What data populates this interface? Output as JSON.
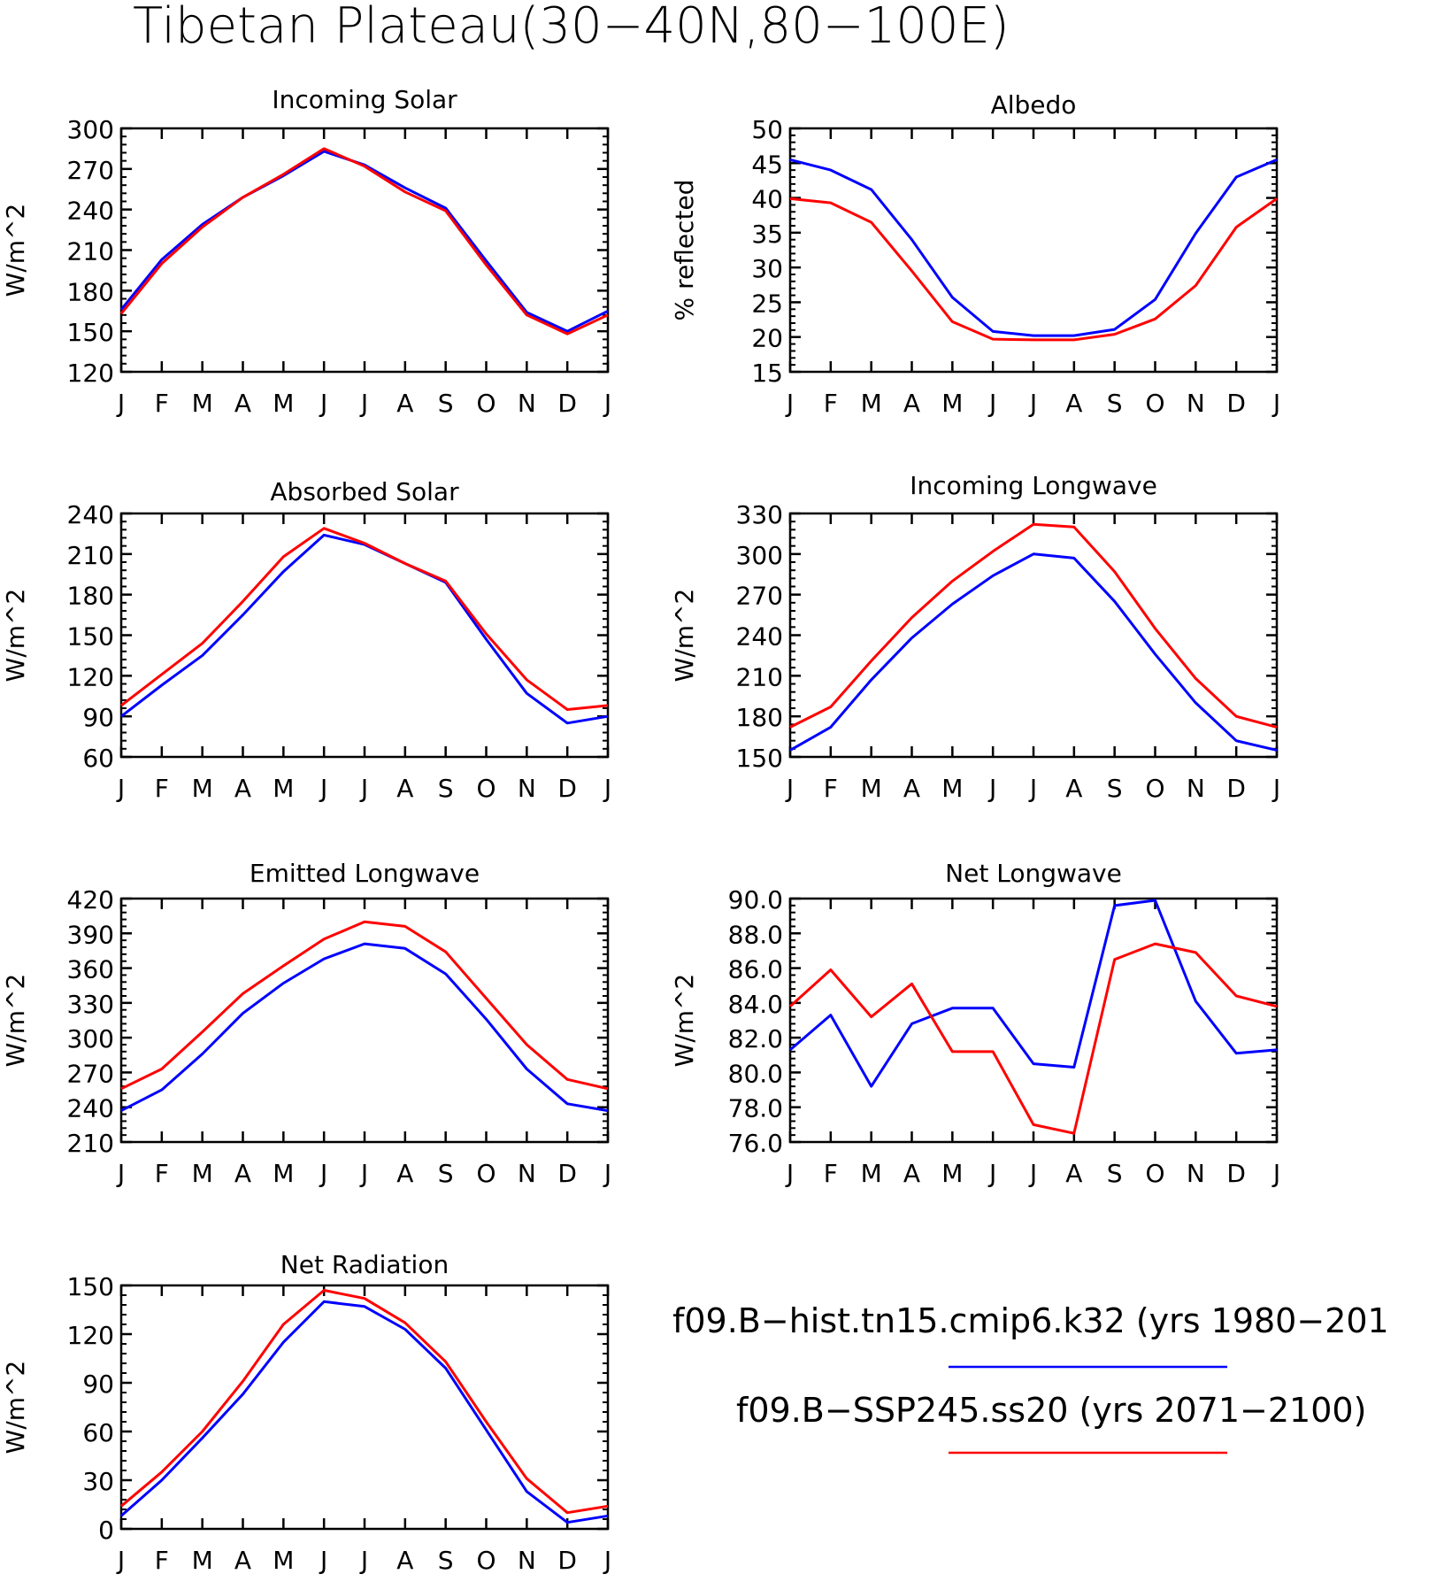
{
  "page": {
    "title": "Tibetan Plateau(30−40N,80−100E)"
  },
  "legend": {
    "entries": [
      {
        "label": "f09.B−hist.tn15.cmip6.k32 (yrs 1980−201",
        "color": "#0000ff"
      },
      {
        "label": "f09.B−SSP245.ss20 (yrs 2071−2100)",
        "color": "#ff0000"
      }
    ]
  },
  "colors": {
    "hist": "#0000ff",
    "ssp": "#ff0000",
    "axis": "#000000"
  },
  "chart_data": [
    {
      "type": "line",
      "title": "Incoming Solar",
      "ylabel": "W/m^2",
      "categories": [
        "J",
        "F",
        "M",
        "A",
        "M",
        "J",
        "J",
        "A",
        "S",
        "O",
        "N",
        "D",
        "J"
      ],
      "ylim": [
        120,
        300
      ],
      "yticks": [
        "120",
        "150",
        "180",
        "210",
        "240",
        "270",
        "300"
      ],
      "series": [
        {
          "values": [
            166,
            203,
            229,
            249,
            265,
            283,
            273,
            256,
            241,
            202,
            164,
            150,
            165
          ]
        },
        {
          "values": [
            163,
            200,
            227,
            249,
            266,
            285,
            272,
            253,
            239,
            199,
            162,
            148,
            162
          ]
        }
      ]
    },
    {
      "type": "line",
      "title": "Albedo",
      "ylabel": "% reflected",
      "categories": [
        "J",
        "F",
        "M",
        "A",
        "M",
        "J",
        "J",
        "A",
        "S",
        "O",
        "N",
        "D",
        "J"
      ],
      "ylim": [
        15,
        50
      ],
      "yticks": [
        "15",
        "20",
        "25",
        "30",
        "35",
        "40",
        "45",
        "50"
      ],
      "series": [
        {
          "values": [
            45.5,
            44,
            41.2,
            34,
            25.7,
            20.8,
            20.2,
            20.2,
            21.1,
            25.4,
            34.9,
            43,
            45.5
          ]
        },
        {
          "values": [
            39.9,
            39.3,
            36.5,
            29.5,
            22.2,
            19.7,
            19.6,
            19.6,
            20.4,
            22.6,
            27.4,
            35.8,
            39.9
          ]
        }
      ]
    },
    {
      "type": "line",
      "title": "Absorbed Solar",
      "ylabel": "W/m^2",
      "categories": [
        "J",
        "F",
        "M",
        "A",
        "M",
        "J",
        "J",
        "A",
        "S",
        "O",
        "N",
        "D",
        "J"
      ],
      "ylim": [
        60,
        240
      ],
      "yticks": [
        "60",
        "90",
        "120",
        "150",
        "180",
        "210",
        "240"
      ],
      "series": [
        {
          "values": [
            90,
            113,
            135,
            165,
            197,
            224,
            217,
            203,
            189,
            147,
            107,
            85,
            90
          ]
        },
        {
          "values": [
            98,
            121,
            144,
            175,
            208,
            229,
            218,
            203,
            190,
            151,
            117,
            95,
            98
          ]
        }
      ]
    },
    {
      "type": "line",
      "title": "Incoming Longwave",
      "ylabel": "W/m^2",
      "categories": [
        "J",
        "F",
        "M",
        "A",
        "M",
        "J",
        "J",
        "A",
        "S",
        "O",
        "N",
        "D",
        "J"
      ],
      "ylim": [
        150,
        330
      ],
      "yticks": [
        "150",
        "180",
        "210",
        "240",
        "270",
        "300",
        "330"
      ],
      "series": [
        {
          "values": [
            155,
            172,
            207,
            238,
            263,
            284,
            300,
            297,
            265,
            226,
            190,
            162,
            155
          ]
        },
        {
          "values": [
            172,
            187,
            221,
            253,
            280,
            302,
            322,
            320,
            287,
            245,
            208,
            180,
            172
          ]
        }
      ]
    },
    {
      "type": "line",
      "title": "Emitted Longwave",
      "ylabel": "W/m^2",
      "categories": [
        "J",
        "F",
        "M",
        "A",
        "M",
        "J",
        "J",
        "A",
        "S",
        "O",
        "N",
        "D",
        "J"
      ],
      "ylim": [
        210,
        420
      ],
      "yticks": [
        "210",
        "240",
        "270",
        "300",
        "330",
        "360",
        "390",
        "420"
      ],
      "series": [
        {
          "values": [
            237,
            255,
            286,
            321,
            347,
            368,
            381,
            377,
            355,
            316,
            273,
            243,
            237
          ]
        },
        {
          "values": [
            256,
            273,
            305,
            338,
            362,
            385,
            400,
            396,
            374,
            334,
            294,
            264,
            256
          ]
        }
      ]
    },
    {
      "type": "line",
      "title": "Net Longwave",
      "ylabel": "W/m^2",
      "categories": [
        "J",
        "F",
        "M",
        "A",
        "M",
        "J",
        "J",
        "A",
        "S",
        "O",
        "N",
        "D",
        "J"
      ],
      "ylim": [
        76,
        90
      ],
      "yticks": [
        "76.0",
        "78.0",
        "80.0",
        "82.0",
        "84.0",
        "86.0",
        "88.0",
        "90.0"
      ],
      "series": [
        {
          "values": [
            81.3,
            83.3,
            79.2,
            82.8,
            83.7,
            83.7,
            80.5,
            80.3,
            89.6,
            89.9,
            84.1,
            81.1,
            81.3
          ]
        },
        {
          "values": [
            83.8,
            85.9,
            83.2,
            85.1,
            81.2,
            81.2,
            77.0,
            76.5,
            86.5,
            87.4,
            86.9,
            84.4,
            83.8
          ]
        }
      ]
    },
    {
      "type": "line",
      "title": "Net Radiation",
      "ylabel": "W/m^2",
      "categories": [
        "J",
        "F",
        "M",
        "A",
        "M",
        "J",
        "J",
        "A",
        "S",
        "O",
        "N",
        "D",
        "J"
      ],
      "ylim": [
        0,
        150
      ],
      "yticks": [
        "0",
        "30",
        "60",
        "90",
        "120",
        "150"
      ],
      "series": [
        {
          "values": [
            8,
            30,
            56,
            83,
            115,
            140,
            137,
            123,
            99,
            61,
            23,
            4,
            8
          ]
        },
        {
          "values": [
            14,
            35,
            60,
            91,
            126,
            147,
            142,
            127,
            103,
            66,
            31,
            10,
            14
          ]
        }
      ]
    }
  ]
}
